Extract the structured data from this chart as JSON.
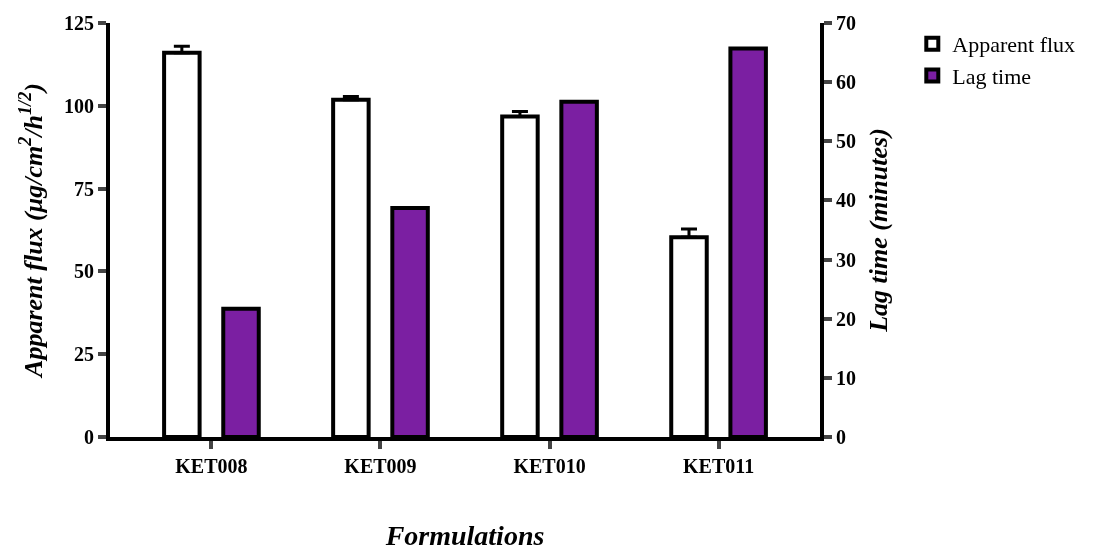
{
  "chart_data": {
    "type": "bar",
    "xlabel": "Formulations",
    "ylabel": "Apparent flux (μg/cm$^{2}$/h$^{1/2}$)",
    "y2label": "Lag time (minutes)",
    "categories": [
      "KET008",
      "KET009",
      "KET010",
      "KET011"
    ],
    "series": [
      {
        "name": "Apparent flux",
        "color": "#ffffff",
        "values": [
          116,
          101.8,
          96.8,
          60.3
        ],
        "errors": [
          2,
          1,
          1.5,
          2.5
        ]
      },
      {
        "name": "Lag time",
        "color": "#7b1fa2",
        "values": [
          21.7,
          38.7,
          56.7,
          65.7
        ],
        "axis": "y2"
      }
    ],
    "ylim": [
      0,
      125
    ],
    "yticks": [
      0,
      25,
      50,
      75,
      100,
      125
    ],
    "y2lim": [
      0,
      70
    ],
    "y2ticks": [
      0,
      10,
      20,
      30,
      40,
      50,
      60,
      70
    ],
    "legend": "top right"
  }
}
